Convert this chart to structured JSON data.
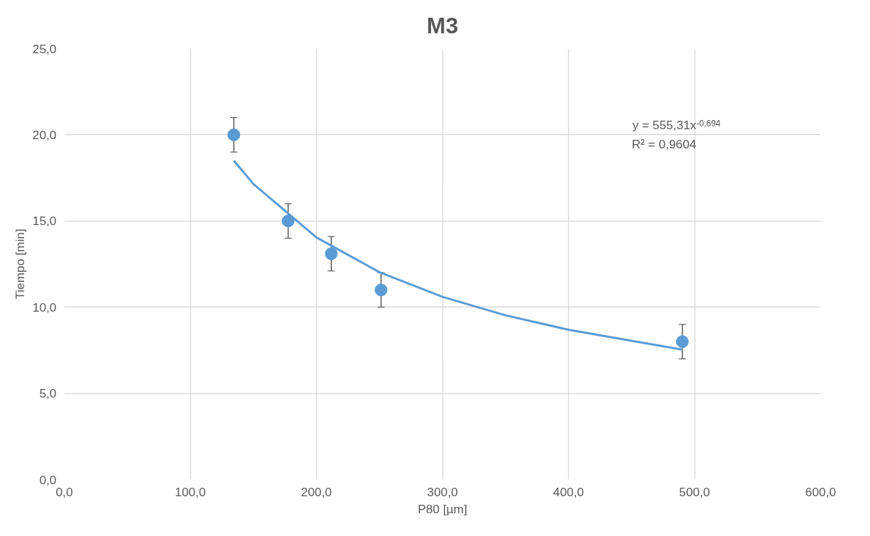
{
  "chart_data": {
    "type": "scatter",
    "title": "M3",
    "xlabel": "P80 [µm]",
    "ylabel": "Tiempo [min]",
    "xlim": [
      0,
      600
    ],
    "ylim": [
      0,
      25
    ],
    "xticks": [
      {
        "value": 0,
        "label": "0,0"
      },
      {
        "value": 100,
        "label": "100,0"
      },
      {
        "value": 200,
        "label": "200,0"
      },
      {
        "value": 300,
        "label": "300,0"
      },
      {
        "value": 400,
        "label": "400,0"
      },
      {
        "value": 500,
        "label": "500,0"
      },
      {
        "value": 600,
        "label": "600,0"
      }
    ],
    "yticks": [
      {
        "value": 0,
        "label": "0,0"
      },
      {
        "value": 5,
        "label": "5,0"
      },
      {
        "value": 10,
        "label": "10,0"
      },
      {
        "value": 15,
        "label": "15,0"
      },
      {
        "value": 20,
        "label": "20,0"
      },
      {
        "value": 25,
        "label": "25,0"
      }
    ],
    "grid": true,
    "series": [
      {
        "marker": "circle",
        "color": "#5b9bd5",
        "x": [
          134.5,
          177.6,
          211.8,
          251.3,
          490.3
        ],
        "values": [
          20.0,
          15.0,
          13.1,
          11.0,
          8.0
        ],
        "errors": [
          1,
          1,
          1,
          1,
          1
        ]
      },
      {
        "type": "line",
        "color": "#5b9bd5",
        "x": [
          134.5,
          150,
          200,
          250,
          300,
          350,
          400,
          490.3
        ],
        "values": [
          18.5,
          17.15,
          14.05,
          12.03,
          10.6,
          9.53,
          8.69,
          7.54
        ]
      }
    ],
    "annotations": [
      "y = 555,31x$^{-0,694}$",
      "R² = 0,9604"
    ]
  }
}
